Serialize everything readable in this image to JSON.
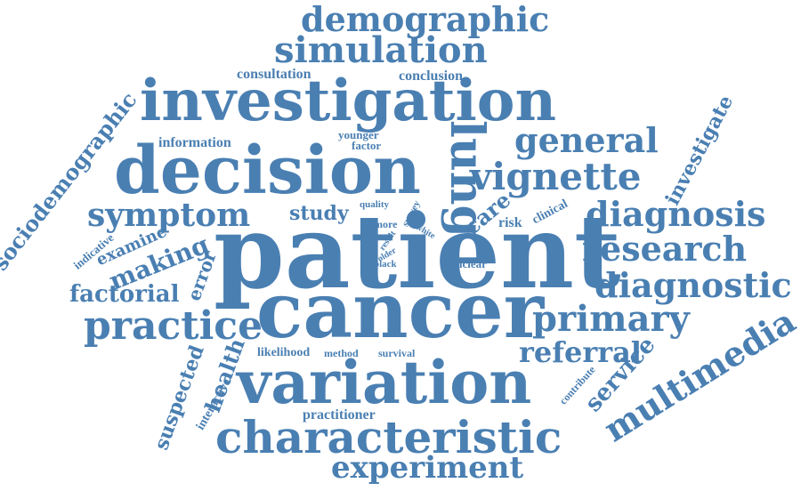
{
  "colors": {
    "word": "#4a7fb2",
    "background": "#ffffff"
  },
  "words": [
    "demographic",
    "simulation",
    "consultation",
    "conclusion",
    "investigation",
    "sociodemographic",
    "information",
    "younger",
    "factor",
    "lung",
    "general",
    "investigate",
    "decision",
    "vignette",
    "symptom",
    "study",
    "quality",
    "survey",
    "more",
    "care",
    "risk",
    "clinical",
    "diagnosis",
    "indicative",
    "examine",
    "making",
    "result",
    "white",
    "older",
    "black",
    "unclear",
    "patient",
    "research",
    "factorial",
    "error",
    "diagnostic",
    "practice",
    "cancer",
    "primary",
    "multimedia",
    "likelihood",
    "method",
    "survival",
    "referral",
    "suspected",
    "health",
    "variation",
    "service",
    "contribute",
    "interactive",
    "practitioner",
    "characteristic",
    "experiment"
  ]
}
